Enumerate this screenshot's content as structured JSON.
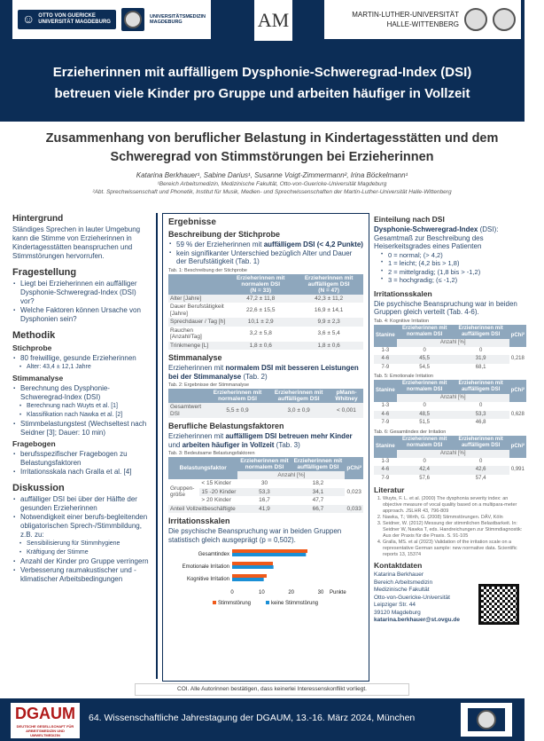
{
  "header": {
    "logo1": "OTTO VON GUERICKE UNIVERSITÄT MAGDEBURG",
    "logo2": "UNIVERSITÄTSMEDIZIN MAGDEBURG",
    "logo3": "AM",
    "logo4a": "MARTIN-LUTHER-UNIVERSITÄT",
    "logo4b": "HALLE-WITTENBERG",
    "headline1": "Erzieherinnen mit auffälligem Dysphonie-Schweregrad-Index (DSI)",
    "headline2": "betreuen viele Kinder pro Gruppe und arbeiten häufiger in Vollzeit"
  },
  "title": {
    "line1": "Zusammenhang von beruflicher Belastung in Kindertagesstätten und dem",
    "line2": "Schweregrad von Stimmstörungen bei Erzieherinnen",
    "authors": "Katarina Berkhauer¹, Sabine Darius¹, Susanne Voigt-Zimmermann², Irina Böckelmann¹",
    "aff1": "¹Bereich Arbeitsmedizin, Medizinische Fakultät, Otto-von-Guericke-Universität Magdeburg",
    "aff2": "²Abt. Sprechwissenschaft und Phonetik, Institut für Musik, Medien- und Sprechwissenschaften der Martin-Luther-Universität Halle-Wittenberg"
  },
  "left": {
    "hintergrund": {
      "title": "Hintergrund",
      "text": "Ständiges Sprechen in lauter Umgebung kann die Stimme von Erzieherinnen in Kindertagesstätten beanspruchen und Stimmstörungen hervorrufen."
    },
    "fragestellung": {
      "title": "Fragestellung",
      "items": [
        "Liegt bei Erzieherinnen ein auffälliger Dysphonie-Schweregrad-Index (DSI) vor?",
        "Welche Faktoren können Ursache von Dysphonien sein?"
      ]
    },
    "methodik": {
      "title": "Methodik",
      "stichprobe": "Stichprobe",
      "s1": "80 freiwillige, gesunde Erzieherinnen",
      "s1a": "Alter: 43,4 ± 12,1 Jahre",
      "stimmanalyse": "Stimmanalyse",
      "m1": "Berechnung des Dysphonie-Schweregrad-Index (DSI)",
      "m1a": "Berechnung nach Wuyts et al. [1]",
      "m1b": "Klassifikation nach Nawka et al. [2]",
      "m2": "Stimmbelastungstest (Wechseltest nach Seidner [3]; Dauer: 10 min)",
      "fragebogen": "Fragebogen",
      "f1": "berufsspezifischer Fragebogen zu Belastungsfaktoren",
      "f2": "Irritationsskala nach Gralla et al. [4]"
    },
    "diskussion": {
      "title": "Diskussion",
      "d1": "auffälliger DSI bei über der Hälfte der gesunden Erzieherinnen",
      "d2": "Notwendigkeit einer berufs-begleitenden obligatorischen Sprech-/Stimmbildung, z.B. zu:",
      "d2a": "Sensibilisierung für Stimmhygiene",
      "d2b": "Kräftigung der Stimme",
      "d3": "Anzahl der Kinder pro Gruppe verringern",
      "d4": "Verbesserung raumakustischer und -klimatischer Arbeitsbedingungen"
    }
  },
  "mid": {
    "title": "Ergebnisse",
    "stich_title": "Beschreibung der Stichprobe",
    "b1_pre": "59 % der Erzieherinnen mit ",
    "b1_bold": "auffälligem DSI (< 4,2 Punkte)",
    "b2": "kein signifikanter Unterschied bezüglich Alter und Dauer der Berufstätigkeit (Tab. 1)",
    "tab1": {
      "caption": "Tab. 1: Beschreibung der Stichprobe",
      "h1": "Erzieherinnen mit normalem DSI",
      "h1n": "(N = 33)",
      "h2": "Erzieherinnen mit auffälligem DSI",
      "h2n": "(N = 47)",
      "rows": [
        [
          "Alter [Jahre]",
          "47,2 ± 11,8",
          "42,3 ± 11,2"
        ],
        [
          "Dauer Berufstätigkeit [Jahre]",
          "22,6 ± 15,5",
          "16,9 ± 14,1"
        ],
        [
          "Sprechdauer / Tag [h]",
          "10,1 ± 2,9",
          "9,9 ± 2,3"
        ],
        [
          "Rauchen [Anzahl/Tag]",
          "3,2 ± 5,8",
          "3,6 ± 5,4"
        ],
        [
          "Trinkmenge [L]",
          "1,8 ± 0,6",
          "1,8 ± 0,6"
        ]
      ]
    },
    "stimm_title": "Stimmanalyse",
    "stimm_pre": "Erzieherinnen mit ",
    "stimm_bold": "normalem DSI mit besseren Leistungen bei der Stimmanalyse",
    "stimm_post": " (Tab. 2)",
    "tab2": {
      "caption": "Tab. 2: Ergebnisse der Stimmanalyse",
      "h1": "Erzieherinnen mit normalem DSI",
      "h2": "Erzieherinnen mit auffälligem DSI",
      "h3": "pMann-Whitney",
      "row": [
        "Gesamtwert DSI",
        "5,5 ± 0,9",
        "3,0 ± 0,9",
        "< 0,001"
      ]
    },
    "beruf_title": "Berufliche Belastungsfaktoren",
    "beruf_pre": "Erzieherinnen mit ",
    "beruf_b1": "auffälligem DSI betreuen mehr Kinder",
    "beruf_mid": " und ",
    "beruf_b2": "arbeiten häufiger in Vollzeit",
    "beruf_post": " (Tab. 3)",
    "tab3": {
      "caption": "Tab. 3: Bedeutsame Belastungsfaktoren",
      "h0": "Belastungsfaktor",
      "h1": "Erzieherinnen mit normalem DSI",
      "h2": "Erzieherinnen mit auffälligem DSI",
      "h3": "pChi²",
      "anz": "Anzahl [%]",
      "group": "Gruppen-größe",
      "rows": [
        [
          "< 15 Kinder",
          "30",
          "18,2"
        ],
        [
          "15 -20 Kinder",
          "53,3",
          "34,1"
        ],
        [
          "> 20 Kinder",
          "16,7",
          "47,7"
        ]
      ],
      "p1": "0,023",
      "voll": [
        "Anteil Vollzeitbeschäftigte",
        "41,9",
        "66,7",
        "0,033"
      ]
    },
    "irr_title": "Irritationsskalen",
    "irr_text": "Die psychische Beanspruchung war in beiden Gruppen statistisch gleich ausgeprägt (p = 0,502)."
  },
  "chart_data": {
    "type": "bar",
    "orientation": "horizontal",
    "categories": [
      "Gesamtindex",
      "Emotionale Irritation",
      "Kognitive Irritation"
    ],
    "series": [
      {
        "name": "Stimmstörung",
        "color": "#f05a1a",
        "values": [
          25.5,
          13.8,
          11.7
        ]
      },
      {
        "name": "keine Stimmstörung",
        "color": "#1a8fd6",
        "values": [
          25,
          14,
          10.7
        ]
      }
    ],
    "xlabel": "Punkte",
    "xlim": [
      0,
      30
    ],
    "ticks": [
      "0",
      "10",
      "20",
      "30"
    ],
    "legend": "bottom"
  },
  "right": {
    "einteil_title": "Einteilung nach DSI",
    "dsi_bold": "Dysphonie-Schweregrad-Index",
    "dsi_rest": " (DSI): Gesamtmaß zur Beschreibung des Heiserkeitsgrades eines Patienten",
    "classes": [
      "0 = normal; (> 4,2)",
      "1 = leicht; (4,2 bis > 1,8)",
      "2 = mittelgradig; (1,8  bis > -1,2)",
      "3 = hochgradig; (≤ -1,2)"
    ],
    "irr_title": "Irritationsskalen",
    "irr_text": "Die psychische Beanspruchung war in beiden Gruppen gleich verteilt (Tab. 4-6).",
    "tables": [
      {
        "caption": "Tab. 4: Kognitive Irritation",
        "rows": [
          [
            "1-3",
            "0",
            "0"
          ],
          [
            "4-6",
            "45,5",
            "31,9"
          ],
          [
            "7-9",
            "54,5",
            "68,1"
          ]
        ],
        "p": "0,218"
      },
      {
        "caption": "Tab. 5: Emotionale Irritation",
        "rows": [
          [
            "1-3",
            "0",
            "0"
          ],
          [
            "4-6",
            "48,5",
            "53,3"
          ],
          [
            "7-9",
            "51,5",
            "46,8"
          ]
        ],
        "p": "0,628"
      },
      {
        "caption": "Tab. 6: Gesamtindex der Irritation",
        "rows": [
          [
            "1-3",
            "0",
            "0"
          ],
          [
            "4-6",
            "42,4",
            "42,6"
          ],
          [
            "7-9",
            "57,6",
            "57,4"
          ]
        ],
        "p": "0,991"
      }
    ],
    "th": {
      "stanine": "Stanine",
      "h1": "Erzieherinnen mit normalem DSI",
      "h2": "Erzieherinnen mit auffälligem DSI",
      "p": "pChi²",
      "anz": "Anzahl [%]"
    },
    "lit_title": "Literatur",
    "lit": [
      "Wuyts, F. L. et al. (2000) The dysphonia severity index: an objective measure of vocal quality based on a multipara-meter approach. JSLHR 43, 796-809",
      "Nawka, T.; Wirth, G. (2008) Stimmstörungen. DÄV, Köln",
      "Seidner, W. (2012) Messung der stimmlichen Belastbarkeit. In: Seidner W, Nawka T, eds. Handreichungen zur Stimmdiagnostik: Aus der Praxis für die Praxis. S. 91-105",
      "Gralla, MS. et al (2023) Validation of the irritation scale on a representative German sample: new normative data. Scientific reports 13, 15374"
    ],
    "kontakt_title": "Kontaktdaten",
    "kontakt": [
      "Katarina Berkhauer",
      "Bereich Arbeitsmedizin",
      "Medizinische Fakultät",
      "Otto-von-Guericke-Universität",
      "Leipziger Str. 44",
      "39120 Magdeburg"
    ],
    "email": "katarina.berkhauer@st.ovgu.de"
  },
  "coi": "COI. Alle Autorinnen bestätigen, dass keinerlei Interessenskonflikt vorliegt.",
  "footer": {
    "dgaum": "DGAUM",
    "dgaum_sub": "DEUTSCHE GESELLSCHAFT FÜR ARBEITSMEDIZIN UND UMWELTMEDIZIN",
    "conference": "64. Wissenschaftliche Jahrestagung der DGAUM, 13.-16. März 2024, München"
  }
}
